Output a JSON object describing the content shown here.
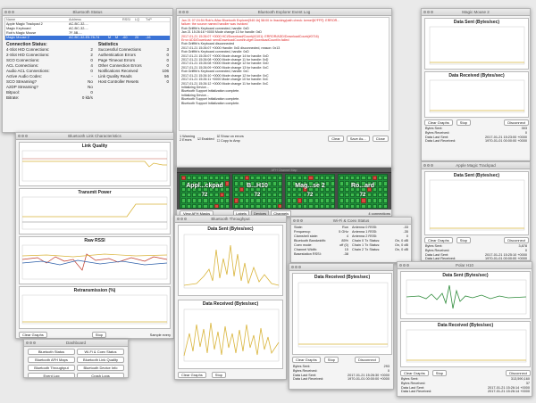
{
  "bt_status": {
    "title": "Bluetooth Status",
    "cols": [
      "Name",
      "Address",
      "",
      "",
      "RSSI",
      "LQ",
      "TxP"
    ],
    "rows": [
      [
        "Apple Magic Trackpad 2",
        "AC-BC-32-...",
        "",
        "",
        "",
        "",
        ""
      ],
      [
        "Magic Keyboard",
        "AC-BC-32-...",
        "",
        "",
        "",
        "",
        ""
      ],
      [
        "Rob's Magic Mouse",
        "7F-5B-...",
        "",
        "",
        "",
        "",
        ""
      ],
      [
        "Magic Mouse 2",
        "AC-BC-32-E5-78-74",
        "M",
        "M",
        "-60",
        "20",
        "-16"
      ]
    ],
    "conn_heading": "Connection Status:",
    "conn": [
      {
        "k": "4-Slot HID Connections:",
        "v": "2"
      },
      {
        "k": "2-Slot HID Connections:",
        "v": "2"
      },
      {
        "k": "SCO Connections:",
        "v": "0"
      },
      {
        "k": "ACL Connections:",
        "v": "4"
      },
      {
        "k": "Audio ACL Connections:",
        "v": "0"
      },
      {
        "k": "Active Audio Codec:",
        "v": "-"
      },
      {
        "k": "SCO Streaming?",
        "v": "No"
      },
      {
        "k": "A2DP Streaming?",
        "v": "No"
      },
      {
        "k": "Bitpool:",
        "v": "0"
      },
      {
        "k": "Bitrate:",
        "v": "0 kb/s"
      }
    ],
    "stats_heading": "Statistics",
    "stats": [
      {
        "k": "Successful Connections",
        "v": "3"
      },
      {
        "k": "Authentication Errors",
        "v": "0"
      },
      {
        "k": "Page Timeout Errors",
        "v": "0"
      },
      {
        "k": "Other Connection Errors",
        "v": "0"
      },
      {
        "k": "Notifications Received",
        "v": "106"
      },
      {
        "k": "Link Quality Reads",
        "v": "56"
      },
      {
        "k": "Host Controller Resets",
        "v": "0"
      }
    ]
  },
  "link_chars": {
    "title": "Bluetooth Link Characteristics",
    "charts": [
      "Link Quality",
      "Transmit Power",
      "Raw RSSI",
      "Retransmission (%)"
    ],
    "clear": "Clear Graphs",
    "stop": "Stop",
    "sample": "Sample every"
  },
  "event_log": {
    "title": "Bluetooth Explorer Event Log",
    "lines": [
      {
        "t": "Jan 21 07:24:54 Rob's-iMac Bluetooth Explorer[940:1b] 58:00 in /tracking/path check: kernel[6?FFF]: ERROR...",
        "c": "#d22"
      },
      {
        "t": "failure: the source named handler was invoked",
        "c": "#d22"
      },
      {
        "t": "Rob Griffith's Keyboard connected, handle: 0xD",
        "c": "#222"
      },
      {
        "t": "Jan 21 15:26:16 +0000 Mode change 13 for handle: 0xD",
        "c": "#222"
      },
      {
        "t": "2017-01-21 15:26:07 +0000 HCI/Download/Count(#1101): ERROR/ADD/DownloadCount(#0716)",
        "c": "#d22"
      },
      {
        "t": "Error ADD/Download: sendDownloadCount/in.#get DownloadCount/in.failed",
        "c": "#d22"
      },
      {
        "t": "Rob Griffith's Keyboard disconnected",
        "c": "#222"
      },
      {
        "t": "2017-01-21 15:26:07 +0000 Handle: 0xD disconnected, reason: 0x13",
        "c": "#222"
      },
      {
        "t": "Rob Griffith's Keyboard connected, handle: 0xD",
        "c": "#222"
      },
      {
        "t": "2017-01-21 15:26:07 +0000 Mode change 14 for handle: 0xD",
        "c": "#222"
      },
      {
        "t": "2017-01-21 15:26:08 +0000 Mode change 11 for handle: 0xD",
        "c": "#222"
      },
      {
        "t": "2017-01-21 15:26:08 +0000 Mode change 12 for handle: 0xD",
        "c": "#222"
      },
      {
        "t": "2017-01-21 15:26:09 +0000 Mode change 13 for handle: 0xC",
        "c": "#222"
      },
      {
        "t": "Rob Griffith's Keyboard connected, handle: 0xC",
        "c": "#222"
      },
      {
        "t": "2017-01-21 15:26:10 +0000 Mode change 12 for handle: 0xC",
        "c": "#222"
      },
      {
        "t": "2017-01-21 15:26:11 +0000 Mode change 10 for handle: 0xC",
        "c": "#222"
      },
      {
        "t": "2017-01-21 15:26:12 +0000 Mode change 11 for handle: 0xC",
        "c": "#222"
      },
      {
        "t": "Initializing Device...",
        "c": "#222"
      },
      {
        "t": "Bluetooth Support Initialization complete.",
        "c": "#222"
      },
      {
        "t": "Initializing Device...",
        "c": "#222"
      },
      {
        "t": "Bluetooth Support Initialization complete.",
        "c": "#222"
      },
      {
        "t": "Bluetooth Support Initialization complete.",
        "c": "#222"
      }
    ],
    "warning": "1 Warning",
    "errors": "2 Errors",
    "enabled": "Enabled",
    "show_errors": "Show on errors",
    "copy": "Copy to Amp",
    "clear": "Clear",
    "save": "Save As...",
    "close": "Close"
  },
  "afh": {
    "title": "AFH Channel Map",
    "tiles": [
      {
        "name": "Appl...ckpad",
        "value": "72"
      },
      {
        "name": "B...H10",
        "value": "72"
      },
      {
        "name": "Mag...se 2",
        "value": "72"
      },
      {
        "name": "Ro...ard",
        "value": "72"
      }
    ],
    "view_btn": "View AFH Masks",
    "tabs": [
      "Labels",
      "Devices",
      "Channels"
    ],
    "connections": "4 connections"
  },
  "throughput": {
    "title": "Bluetooth Throughput",
    "sent": "Data Sent (Bytes/sec)",
    "recv": "Data Received (Bytes/sec)",
    "clear": "Clear Graphs",
    "stop": "Stop",
    "disconnect": "Disconnect"
  },
  "wifi": {
    "title": "Wi-Fi & Coex Status",
    "left": [
      {
        "k": "State:",
        "v": "Run"
      },
      {
        "k": "Frequency:",
        "v": "5 GHz"
      },
      {
        "k": "Clamshell state:",
        "v": "4"
      },
      {
        "k": "Bluetooth Bandwidth:",
        "v": "85%"
      },
      {
        "k": "Coex mode:",
        "v": "off (0)"
      },
      {
        "k": "Channel Width:",
        "v": "15"
      },
      {
        "k": "Basestation RSSI:",
        "v": "-38"
      }
    ],
    "right": [
      {
        "k": "Antenna 0 RSSI:",
        "v": "-33"
      },
      {
        "k": "Antenna 1 RSSI:",
        "v": "-35"
      },
      {
        "k": "Antenna 2 RSSI:",
        "v": "0"
      },
      {
        "k": "Chain 0 Tx Status:",
        "v": "On, 0 dB"
      },
      {
        "k": "Chain 1 Tx Status:",
        "v": "On, 0 dB"
      },
      {
        "k": "Chain 2 Tx Status:",
        "v": "On, 0 dB"
      }
    ]
  },
  "magic_mouse": {
    "title": "Magic Mouse 2",
    "sent": "Data Sent (Bytes/sec)",
    "recv": "Data Received (Bytes/sec)",
    "clear": "Clear Graphs",
    "stop": "Stop",
    "disconnect": "Disconnect",
    "stats": [
      {
        "k": "Bytes Sent:",
        "v": "303"
      },
      {
        "k": "Bytes Received:",
        "v": "0"
      },
      {
        "k": "Data Last Sent:",
        "v": "2017-01-21 15:23:00 +0000"
      },
      {
        "k": "Data Last Received:",
        "v": "1970-01-01 00:00:00 +0000"
      }
    ]
  },
  "trackpad": {
    "title": "Apple Magic Trackpad",
    "sent": "Data Sent (Bytes/sec)",
    "recv": "Data Received (Bytes/sec)",
    "clear": "Clear Graphs",
    "stop": "Stop",
    "disconnect": "Disconnect",
    "stats": [
      {
        "k": "Bytes Sent:",
        "v": "3,878"
      },
      {
        "k": "Bytes Received:",
        "v": "0"
      },
      {
        "k": "Data Last Sent:",
        "v": "2017-01-21 15:25:10 +0000"
      },
      {
        "k": "Data Last Received:",
        "v": "1970-01-01 00:00:00 +0000"
      }
    ]
  },
  "h10": {
    "title": "Polar H10",
    "sent": "Data Sent (Bytes/sec)",
    "recv": "Data Received (Bytes/sec)",
    "clear": "Clear Graphs",
    "stop": "Stop",
    "disconnect": "Disconnect",
    "stats": [
      {
        "k": "Bytes Sent:",
        "v": "313,590,160"
      },
      {
        "k": "Bytes Received:",
        "v": "37"
      },
      {
        "k": "Data Last Sent:",
        "v": "2017-01-21 15:26:14 +0000"
      },
      {
        "k": "Data Last Received:",
        "v": "2017-01-21 15:26:14 +0000"
      }
    ]
  },
  "small_dev": {
    "sent": "Data Received (Bytes/sec)",
    "clear": "Clear Graphs",
    "stop": "Stop",
    "disconnect": "Disconnect",
    "stats": [
      {
        "k": "Bytes Sent:",
        "v": "293"
      },
      {
        "k": "Bytes Received:",
        "v": "0"
      },
      {
        "k": "Data Last Sent:",
        "v": "2017-01-21 15:26:30 +0000"
      },
      {
        "k": "Data Last Received:",
        "v": "1970-01-01 00:00:00 +0000"
      }
    ]
  },
  "dashboard": {
    "title": "Dashboard",
    "buttons": [
      "Bluetooth Status",
      "Wi-Fi & Coex Status",
      "Bluetooth AFH Maps",
      "Bluetooth Link Quality",
      "Bluetooth Throughput",
      "Bluetooth Device Info",
      "Event Log",
      "Crash Logs"
    ]
  },
  "colors": {
    "accent": "#d9b43a",
    "tile_green": "#1f8f3a",
    "warn_red": "#d22"
  }
}
